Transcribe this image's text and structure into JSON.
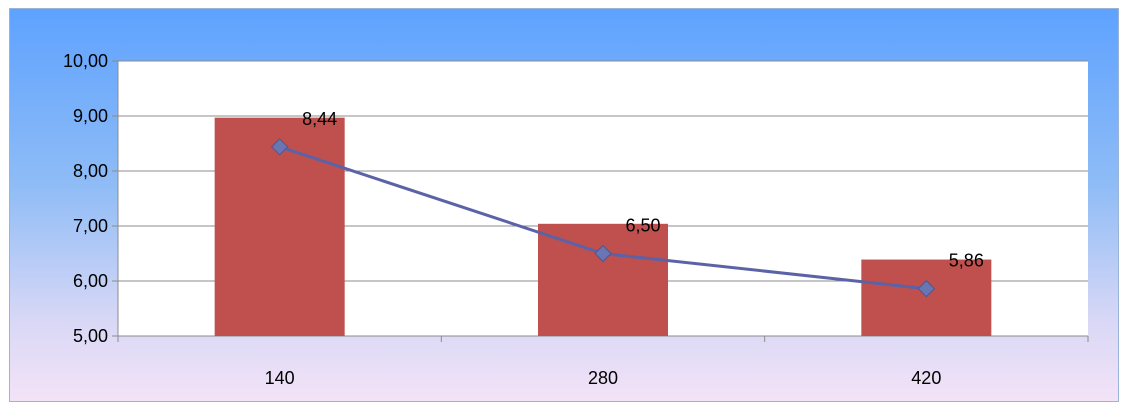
{
  "chart_data": {
    "type": "bar",
    "categories": [
      "140",
      "280",
      "420"
    ],
    "series": [
      {
        "type": "bar",
        "values": [
          8.97,
          7.04,
          6.39
        ],
        "color": "#c0504d"
      },
      {
        "type": "line",
        "values": [
          8.44,
          6.5,
          5.86
        ],
        "color": "#5b62a6"
      }
    ],
    "data_labels": [
      "8,44",
      "6,50",
      "5,86"
    ],
    "y_tick_labels": [
      "5,00",
      "6,00",
      "7,00",
      "8,00",
      "9,00",
      "10,00"
    ],
    "ylim": [
      5,
      10
    ],
    "grid": true,
    "title": "",
    "xlabel": "",
    "ylabel": ""
  }
}
